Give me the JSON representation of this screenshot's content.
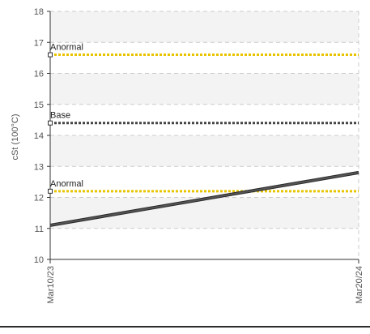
{
  "chart_data": {
    "type": "line",
    "title": "",
    "xlabel": "",
    "ylabel": "cSt (100°C)",
    "ylim": [
      10,
      18
    ],
    "yticks": [
      "10",
      "11",
      "12",
      "13",
      "14",
      "15",
      "16",
      "17",
      "18"
    ],
    "x_categories": [
      "Mar10/23",
      "Mar20/24"
    ],
    "series": [
      {
        "values": [
          11.1,
          12.8
        ],
        "color": "#555555"
      }
    ],
    "reference_lines": [
      {
        "label": "Anormal",
        "value": 16.6,
        "color": "#e8c400"
      },
      {
        "label": "Base",
        "value": 14.4,
        "color": "#444444"
      },
      {
        "label": "Anormal",
        "value": 12.2,
        "color": "#e8c400"
      }
    ],
    "grid": true,
    "legend": "none"
  }
}
